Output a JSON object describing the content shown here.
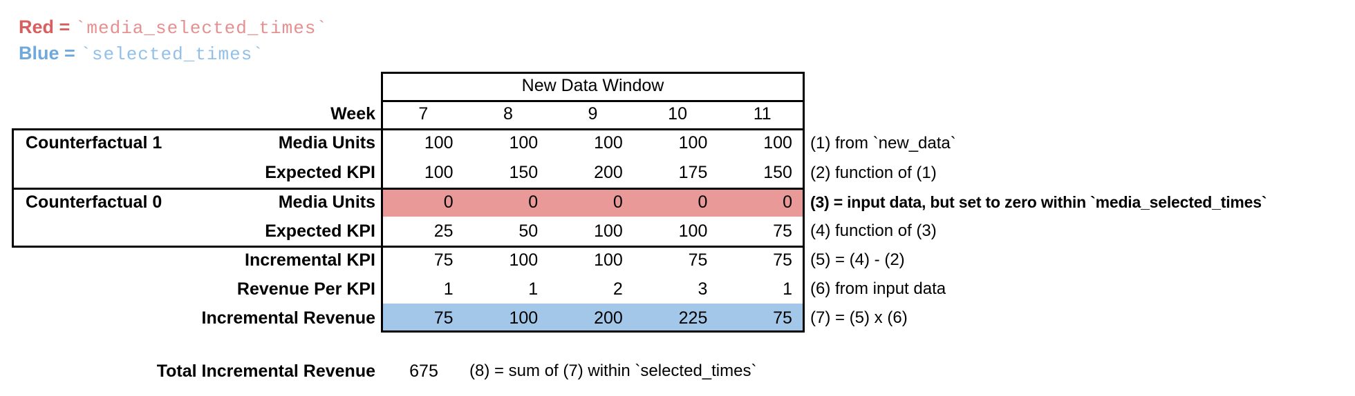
{
  "legend": {
    "red_text": "Red = ",
    "red_code": "`media_selected_times`",
    "blue_text": "Blue = ",
    "blue_code": "`selected_times`"
  },
  "colors": {
    "red_text": "#d85f5f",
    "red_code": "#e59090",
    "blue_text": "#6fa8dc",
    "blue_code": "#92c0e8",
    "red_fill": "#ea9999",
    "blue_fill": "#a2c7e8",
    "border": "#000000"
  },
  "table": {
    "header": "New Data Window",
    "week_label": "Week",
    "weeks": [
      "7",
      "8",
      "9",
      "10",
      "11"
    ],
    "rows": [
      {
        "group": "Counterfactual 1",
        "label": "Media Units",
        "values": [
          "100",
          "100",
          "100",
          "100",
          "100"
        ],
        "annotation": "(1) from `new_data`"
      },
      {
        "group": "",
        "label": "Expected KPI",
        "values": [
          "100",
          "150",
          "200",
          "175",
          "150"
        ],
        "annotation": "(2) function of (1)"
      },
      {
        "group": "Counterfactual 0",
        "label": "Media Units",
        "values": [
          "0",
          "0",
          "0",
          "0",
          "0"
        ],
        "annotation": "(3) = input data, but set to zero within `media_selected_times`",
        "highlight": "red",
        "bold": true
      },
      {
        "group": "",
        "label": "Expected KPI",
        "values": [
          "25",
          "50",
          "100",
          "100",
          "75"
        ],
        "annotation": "(4) function of (3)"
      },
      {
        "group": "",
        "label": "Incremental KPI",
        "values": [
          "75",
          "100",
          "100",
          "75",
          "75"
        ],
        "annotation": "(5) = (4) - (2)"
      },
      {
        "group": "",
        "label": "Revenue Per KPI",
        "values": [
          "1",
          "1",
          "2",
          "3",
          "1"
        ],
        "annotation": "(6) from input data"
      },
      {
        "group": "",
        "label": "Incremental Revenue",
        "values": [
          "75",
          "100",
          "200",
          "225",
          "75"
        ],
        "annotation": "(7) = (5) x (6)",
        "highlight": "blue"
      }
    ]
  },
  "total": {
    "label": "Total Incremental Revenue",
    "value": "675",
    "annotation": "(8) = sum of (7) within `selected_times`"
  }
}
